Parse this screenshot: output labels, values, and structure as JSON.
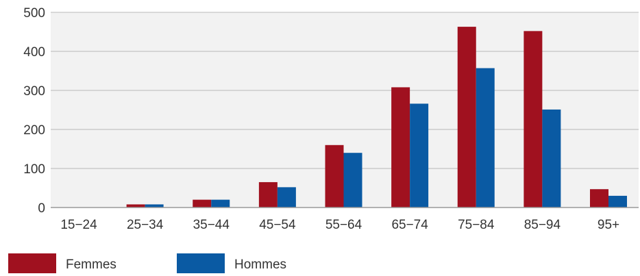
{
  "chart_data": {
    "type": "bar",
    "title": "",
    "xlabel": "",
    "ylabel": "",
    "categories": [
      "15−24",
      "25−34",
      "35−44",
      "45−54",
      "55−64",
      "65−74",
      "75−84",
      "85−94",
      "95+"
    ],
    "series": [
      {
        "name": "Femmes",
        "color": "#a0111f",
        "values": [
          0,
          8,
          20,
          65,
          160,
          308,
          463,
          452,
          47
        ]
      },
      {
        "name": "Hommes",
        "color": "#0a5aa3",
        "values": [
          0,
          8,
          20,
          52,
          140,
          266,
          357,
          251,
          30
        ]
      }
    ],
    "ylim": [
      0,
      500
    ],
    "yticks": [
      0,
      100,
      200,
      300,
      400,
      500
    ],
    "grid": true,
    "legend_position": "bottom-left"
  }
}
